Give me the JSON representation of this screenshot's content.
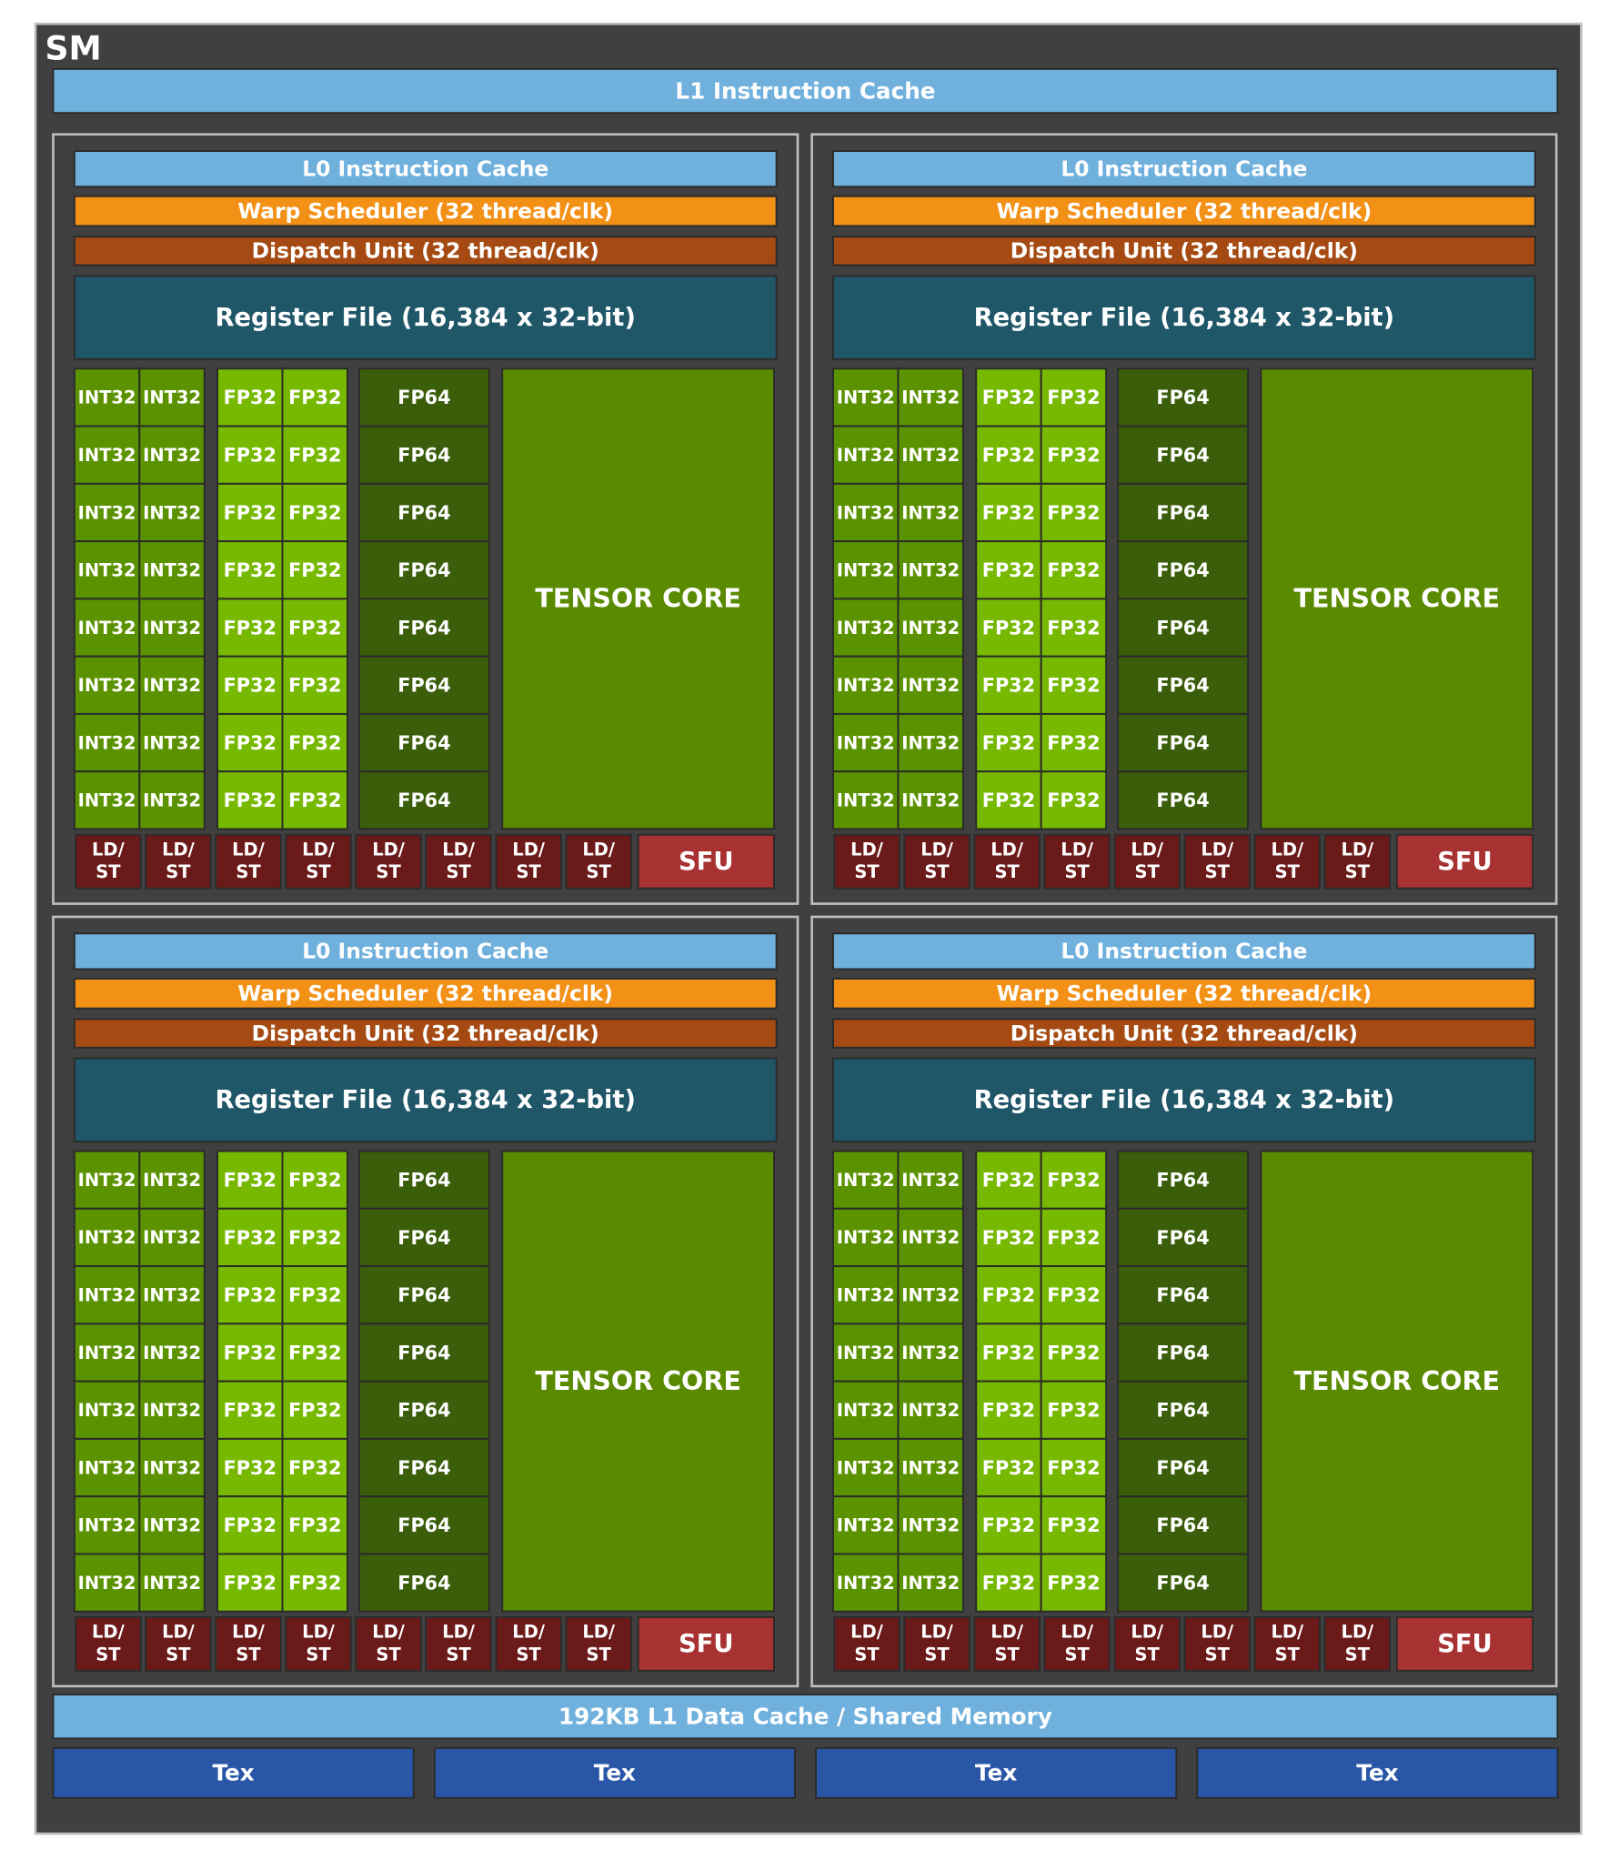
{
  "title": "SM",
  "l1_instruction_cache": "L1 Instruction Cache",
  "partitions": [
    {
      "l0_instruction_cache": "L0 Instruction Cache",
      "warp_scheduler": "Warp Scheduler (32 thread/clk)",
      "dispatch_unit": "Dispatch Unit (32 thread/clk)",
      "register_file": "Register File (16,384 x 32-bit)",
      "int32_units": [
        "INT32",
        "INT32",
        "INT32",
        "INT32",
        "INT32",
        "INT32",
        "INT32",
        "INT32",
        "INT32",
        "INT32",
        "INT32",
        "INT32",
        "INT32",
        "INT32",
        "INT32",
        "INT32"
      ],
      "fp32_units": [
        "FP32",
        "FP32",
        "FP32",
        "FP32",
        "FP32",
        "FP32",
        "FP32",
        "FP32",
        "FP32",
        "FP32",
        "FP32",
        "FP32",
        "FP32",
        "FP32",
        "FP32",
        "FP32"
      ],
      "fp64_units": [
        "FP64",
        "FP64",
        "FP64",
        "FP64",
        "FP64",
        "FP64",
        "FP64",
        "FP64"
      ],
      "tensor_core": "TENSOR CORE",
      "ld_st_units": [
        [
          "LD/",
          "ST"
        ],
        [
          "LD/",
          "ST"
        ],
        [
          "LD/",
          "ST"
        ],
        [
          "LD/",
          "ST"
        ],
        [
          "LD/",
          "ST"
        ],
        [
          "LD/",
          "ST"
        ],
        [
          "LD/",
          "ST"
        ],
        [
          "LD/",
          "ST"
        ]
      ],
      "sfu": "SFU"
    },
    {
      "l0_instruction_cache": "L0 Instruction Cache",
      "warp_scheduler": "Warp Scheduler (32 thread/clk)",
      "dispatch_unit": "Dispatch Unit (32 thread/clk)",
      "register_file": "Register File (16,384 x 32-bit)",
      "int32_units": [
        "INT32",
        "INT32",
        "INT32",
        "INT32",
        "INT32",
        "INT32",
        "INT32",
        "INT32",
        "INT32",
        "INT32",
        "INT32",
        "INT32",
        "INT32",
        "INT32",
        "INT32",
        "INT32"
      ],
      "fp32_units": [
        "FP32",
        "FP32",
        "FP32",
        "FP32",
        "FP32",
        "FP32",
        "FP32",
        "FP32",
        "FP32",
        "FP32",
        "FP32",
        "FP32",
        "FP32",
        "FP32",
        "FP32",
        "FP32"
      ],
      "fp64_units": [
        "FP64",
        "FP64",
        "FP64",
        "FP64",
        "FP64",
        "FP64",
        "FP64",
        "FP64"
      ],
      "tensor_core": "TENSOR CORE",
      "ld_st_units": [
        [
          "LD/",
          "ST"
        ],
        [
          "LD/",
          "ST"
        ],
        [
          "LD/",
          "ST"
        ],
        [
          "LD/",
          "ST"
        ],
        [
          "LD/",
          "ST"
        ],
        [
          "LD/",
          "ST"
        ],
        [
          "LD/",
          "ST"
        ],
        [
          "LD/",
          "ST"
        ]
      ],
      "sfu": "SFU"
    },
    {
      "l0_instruction_cache": "L0 Instruction Cache",
      "warp_scheduler": "Warp Scheduler (32 thread/clk)",
      "dispatch_unit": "Dispatch Unit (32 thread/clk)",
      "register_file": "Register File (16,384 x 32-bit)",
      "int32_units": [
        "INT32",
        "INT32",
        "INT32",
        "INT32",
        "INT32",
        "INT32",
        "INT32",
        "INT32",
        "INT32",
        "INT32",
        "INT32",
        "INT32",
        "INT32",
        "INT32",
        "INT32",
        "INT32"
      ],
      "fp32_units": [
        "FP32",
        "FP32",
        "FP32",
        "FP32",
        "FP32",
        "FP32",
        "FP32",
        "FP32",
        "FP32",
        "FP32",
        "FP32",
        "FP32",
        "FP32",
        "FP32",
        "FP32",
        "FP32"
      ],
      "fp64_units": [
        "FP64",
        "FP64",
        "FP64",
        "FP64",
        "FP64",
        "FP64",
        "FP64",
        "FP64"
      ],
      "tensor_core": "TENSOR CORE",
      "ld_st_units": [
        [
          "LD/",
          "ST"
        ],
        [
          "LD/",
          "ST"
        ],
        [
          "LD/",
          "ST"
        ],
        [
          "LD/",
          "ST"
        ],
        [
          "LD/",
          "ST"
        ],
        [
          "LD/",
          "ST"
        ],
        [
          "LD/",
          "ST"
        ],
        [
          "LD/",
          "ST"
        ]
      ],
      "sfu": "SFU"
    },
    {
      "l0_instruction_cache": "L0 Instruction Cache",
      "warp_scheduler": "Warp Scheduler (32 thread/clk)",
      "dispatch_unit": "Dispatch Unit (32 thread/clk)",
      "register_file": "Register File (16,384 x 32-bit)",
      "int32_units": [
        "INT32",
        "INT32",
        "INT32",
        "INT32",
        "INT32",
        "INT32",
        "INT32",
        "INT32",
        "INT32",
        "INT32",
        "INT32",
        "INT32",
        "INT32",
        "INT32",
        "INT32",
        "INT32"
      ],
      "fp32_units": [
        "FP32",
        "FP32",
        "FP32",
        "FP32",
        "FP32",
        "FP32",
        "FP32",
        "FP32",
        "FP32",
        "FP32",
        "FP32",
        "FP32",
        "FP32",
        "FP32",
        "FP32",
        "FP32"
      ],
      "fp64_units": [
        "FP64",
        "FP64",
        "FP64",
        "FP64",
        "FP64",
        "FP64",
        "FP64",
        "FP64"
      ],
      "tensor_core": "TENSOR CORE",
      "ld_st_units": [
        [
          "LD/",
          "ST"
        ],
        [
          "LD/",
          "ST"
        ],
        [
          "LD/",
          "ST"
        ],
        [
          "LD/",
          "ST"
        ],
        [
          "LD/",
          "ST"
        ],
        [
          "LD/",
          "ST"
        ],
        [
          "LD/",
          "ST"
        ],
        [
          "LD/",
          "ST"
        ]
      ],
      "sfu": "SFU"
    }
  ],
  "l1_data_cache": "192KB L1 Data Cache / Shared Memory",
  "tex_units": [
    "Tex",
    "Tex",
    "Tex",
    "Tex"
  ]
}
